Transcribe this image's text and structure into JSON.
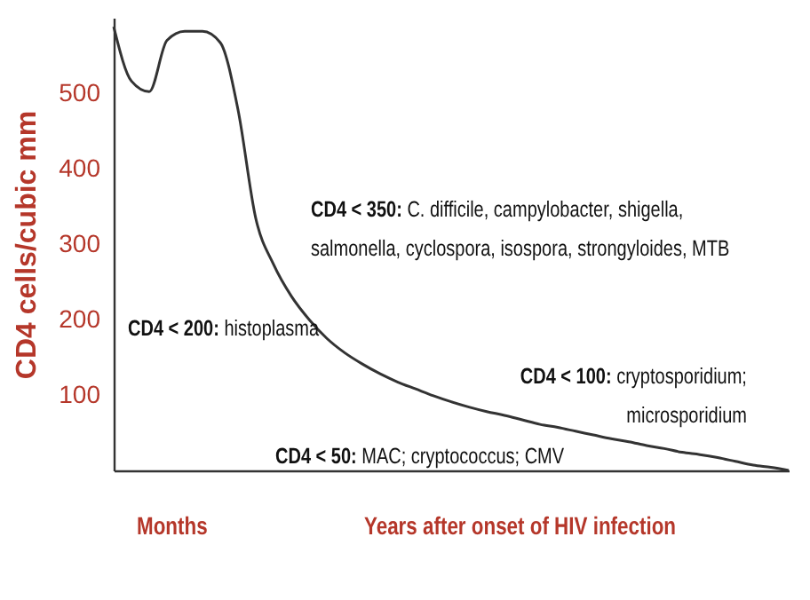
{
  "chart_data": {
    "type": "line",
    "ylabel": "CD4 cells/cubic mm",
    "xlabel": "Years after onset of HIV infection",
    "categories": [
      null,
      null,
      null,
      null,
      null,
      null,
      null,
      null,
      null,
      null,
      null,
      null,
      null,
      null,
      null,
      null,
      null,
      null,
      null,
      null,
      null,
      null,
      null,
      null,
      null,
      null,
      null,
      null,
      null,
      null,
      null,
      null,
      null,
      null,
      null,
      null,
      null,
      null,
      null
    ],
    "series": [
      {
        "color": "#333333",
        "values": [
          588,
          516,
          502,
          570,
          582,
          582,
          567,
          478,
          334,
          273,
          231,
          200,
          175,
          156,
          141,
          128,
          117,
          108,
          99,
          91,
          84,
          78,
          73,
          67,
          61,
          57,
          52,
          47,
          42,
          38,
          33,
          29,
          24,
          21,
          17,
          12,
          7,
          4,
          0
        ]
      }
    ],
    "ylim": [
      0,
      600
    ],
    "yticks": [
      100,
      200,
      300,
      400,
      500
    ],
    "grid": false,
    "annotations": [
      "CD4 < 350: C. difficile, campylobacter, shigella,\nsalmonella, cyclospora, isospora, strongyloides, MTB",
      "CD4 < 200: histoplasma",
      "CD4 < 100: cryptosporidium;\nmicrosporidium",
      "CD4 < 50: MAC; cryptococcus; CMV",
      "Months"
    ]
  }
}
